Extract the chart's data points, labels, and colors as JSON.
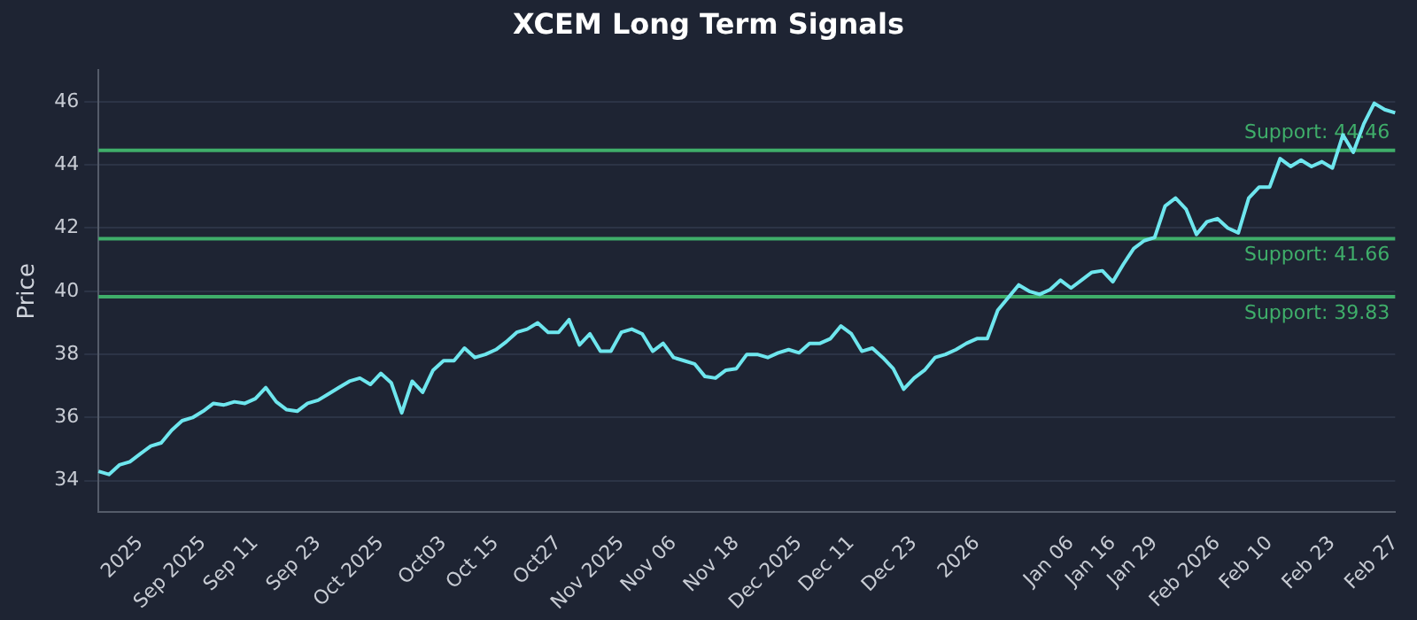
{
  "chart_data": {
    "type": "line",
    "title": "XCEM Long Term Signals",
    "ylabel": "Price",
    "categories": [
      null,
      null,
      null,
      null,
      "2025",
      null,
      null,
      null,
      null,
      null,
      "Sep 2025",
      null,
      null,
      null,
      null,
      "Sep 11",
      null,
      null,
      null,
      null,
      null,
      "Sep 23",
      null,
      null,
      null,
      null,
      null,
      "Oct 2025",
      null,
      null,
      null,
      null,
      null,
      "Oct03",
      null,
      null,
      null,
      null,
      "Oct 15",
      null,
      null,
      null,
      null,
      null,
      "Oct27",
      null,
      null,
      null,
      null,
      null,
      "Nov 2025",
      null,
      null,
      null,
      null,
      "Nov 06",
      null,
      null,
      null,
      null,
      null,
      "Nov 18",
      null,
      null,
      null,
      null,
      null,
      "Dec 2025",
      null,
      null,
      null,
      null,
      "Dec 11",
      null,
      null,
      null,
      null,
      null,
      "Dec 23",
      null,
      null,
      null,
      null,
      null,
      "2026",
      null,
      null,
      null,
      null,
      null,
      null,
      null,
      null,
      "Jan 06",
      null,
      null,
      null,
      "Jan 16",
      null,
      null,
      null,
      "Jan 29",
      null,
      null,
      null,
      null,
      null,
      "Feb 2026",
      null,
      null,
      null,
      null,
      "Feb 10",
      null,
      null,
      null,
      null,
      null,
      "Feb 23",
      null,
      null,
      null,
      null,
      null,
      "Feb 27"
    ],
    "series": [
      {
        "color": "#6ee6ee",
        "values": [
          34.3,
          34.2,
          34.5,
          34.6,
          34.85,
          35.1,
          35.2,
          35.6,
          35.9,
          36.0,
          36.2,
          36.45,
          36.4,
          36.5,
          36.45,
          36.6,
          36.95,
          36.5,
          36.25,
          36.2,
          36.45,
          36.55,
          36.75,
          36.95,
          37.15,
          37.25,
          37.05,
          37.4,
          37.1,
          36.15,
          37.15,
          36.8,
          37.5,
          37.8,
          37.8,
          38.2,
          37.9,
          38.0,
          38.15,
          38.4,
          38.7,
          38.8,
          39.0,
          38.7,
          38.7,
          39.1,
          38.3,
          38.65,
          38.1,
          38.1,
          38.7,
          38.8,
          38.65,
          38.1,
          38.35,
          37.9,
          37.8,
          37.7,
          37.3,
          37.25,
          37.5,
          37.55,
          38.0,
          38.0,
          37.9,
          38.05,
          38.15,
          38.05,
          38.35,
          38.35,
          38.5,
          38.9,
          38.65,
          38.1,
          38.2,
          37.9,
          37.55,
          36.9,
          37.25,
          37.5,
          37.9,
          38.0,
          38.15,
          38.35,
          38.5,
          38.5,
          39.4,
          39.8,
          40.2,
          40.0,
          39.9,
          40.05,
          40.35,
          40.1,
          40.35,
          40.6,
          40.65,
          40.3,
          40.85,
          41.35,
          41.6,
          41.7,
          42.7,
          42.95,
          42.6,
          41.8,
          42.2,
          42.3,
          42.0,
          41.85,
          42.95,
          43.3,
          43.3,
          44.2,
          43.95,
          44.15,
          43.95,
          44.1,
          43.9,
          44.95,
          44.4,
          45.3,
          45.95,
          45.75,
          45.65
        ]
      }
    ],
    "ylim": [
      33,
      47
    ],
    "yticks": [
      34,
      36,
      38,
      40,
      42,
      44,
      46
    ],
    "grid": "y",
    "legend": false,
    "marker": "none",
    "line_style": "solid",
    "ref_lines": [
      {
        "axis": "y",
        "value": 44.46,
        "label": "Support: 44.46",
        "color": "#3fae6a"
      },
      {
        "axis": "y",
        "value": 41.66,
        "label": "Support: 41.66",
        "color": "#3fae6a"
      },
      {
        "axis": "y",
        "value": 39.83,
        "label": "Support: 39.83",
        "color": "#3fae6a"
      }
    ]
  }
}
